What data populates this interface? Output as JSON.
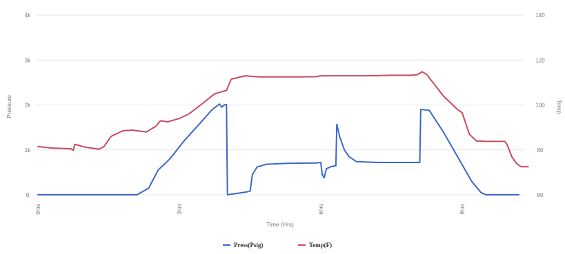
{
  "chart_data": {
    "type": "line",
    "title": "",
    "xlabel": "Time (Hrs)",
    "ylabel_left": "Pressure",
    "ylabel_right": "Temp",
    "x_ticks": [
      "0hrs",
      "3hrs",
      "6hrs",
      "9hrs"
    ],
    "xlim": [
      0,
      10.2
    ],
    "y_left_ticks": [
      "0",
      "1k",
      "2k",
      "3k",
      "4k"
    ],
    "y_left_lim": [
      0,
      4000
    ],
    "y_right_ticks": [
      "60",
      "80",
      "100",
      "120",
      "140"
    ],
    "y_right_lim": [
      60,
      140
    ],
    "grid": true,
    "legend_position": "bottom",
    "series": [
      {
        "name": "Press(Psig)",
        "axis": "left",
        "color": "#3a66cc",
        "points": [
          [
            0,
            0
          ],
          [
            2.1,
            0
          ],
          [
            2.35,
            150
          ],
          [
            2.55,
            550
          ],
          [
            2.8,
            800
          ],
          [
            3.1,
            1200
          ],
          [
            3.4,
            1550
          ],
          [
            3.7,
            1900
          ],
          [
            3.85,
            2020
          ],
          [
            3.9,
            1950
          ],
          [
            3.95,
            2000
          ],
          [
            4.0,
            2010
          ],
          [
            4.02,
            0
          ],
          [
            4.4,
            60
          ],
          [
            4.5,
            80
          ],
          [
            4.55,
            450
          ],
          [
            4.65,
            620
          ],
          [
            4.85,
            680
          ],
          [
            5.3,
            700
          ],
          [
            5.9,
            710
          ],
          [
            6.0,
            720
          ],
          [
            6.03,
            450
          ],
          [
            6.07,
            380
          ],
          [
            6.12,
            580
          ],
          [
            6.2,
            620
          ],
          [
            6.32,
            650
          ],
          [
            6.34,
            1570
          ],
          [
            6.4,
            1300
          ],
          [
            6.5,
            1000
          ],
          [
            6.6,
            850
          ],
          [
            6.75,
            740
          ],
          [
            7.2,
            720
          ],
          [
            7.8,
            720
          ],
          [
            8.1,
            720
          ],
          [
            8.12,
            1900
          ],
          [
            8.3,
            1880
          ],
          [
            8.6,
            1400
          ],
          [
            8.9,
            850
          ],
          [
            9.2,
            300
          ],
          [
            9.4,
            50
          ],
          [
            9.5,
            0
          ],
          [
            10.2,
            0
          ]
        ]
      },
      {
        "name": "Temp(F)",
        "axis": "right",
        "color": "#c94a5c",
        "points": [
          [
            0,
            81.5
          ],
          [
            0.3,
            80.8
          ],
          [
            0.7,
            80.5
          ],
          [
            0.75,
            79.8
          ],
          [
            0.78,
            82.5
          ],
          [
            1.0,
            81.2
          ],
          [
            1.3,
            80.3
          ],
          [
            1.4,
            81.5
          ],
          [
            1.55,
            86
          ],
          [
            1.8,
            88.5
          ],
          [
            2.0,
            88.8
          ],
          [
            2.3,
            88
          ],
          [
            2.5,
            90.5
          ],
          [
            2.6,
            93
          ],
          [
            2.75,
            92.5
          ],
          [
            3.0,
            94
          ],
          [
            3.2,
            96
          ],
          [
            3.45,
            100
          ],
          [
            3.75,
            105
          ],
          [
            4.0,
            106.5
          ],
          [
            4.1,
            111.5
          ],
          [
            4.4,
            113
          ],
          [
            4.7,
            112.5
          ],
          [
            5.0,
            112.5
          ],
          [
            5.5,
            112.5
          ],
          [
            5.9,
            112.6
          ],
          [
            6.0,
            113
          ],
          [
            6.4,
            113
          ],
          [
            7.0,
            113
          ],
          [
            7.5,
            113.2
          ],
          [
            7.9,
            113.2
          ],
          [
            8.05,
            113.5
          ],
          [
            8.15,
            114.8
          ],
          [
            8.25,
            113.5
          ],
          [
            8.6,
            104
          ],
          [
            8.9,
            98
          ],
          [
            9.0,
            96.5
          ],
          [
            9.15,
            87
          ],
          [
            9.3,
            84
          ],
          [
            9.5,
            83.8
          ],
          [
            9.9,
            83.8
          ],
          [
            9.95,
            82.5
          ],
          [
            10.05,
            77
          ],
          [
            10.15,
            74
          ],
          [
            10.25,
            72.5
          ],
          [
            10.4,
            72.5
          ]
        ]
      }
    ]
  }
}
